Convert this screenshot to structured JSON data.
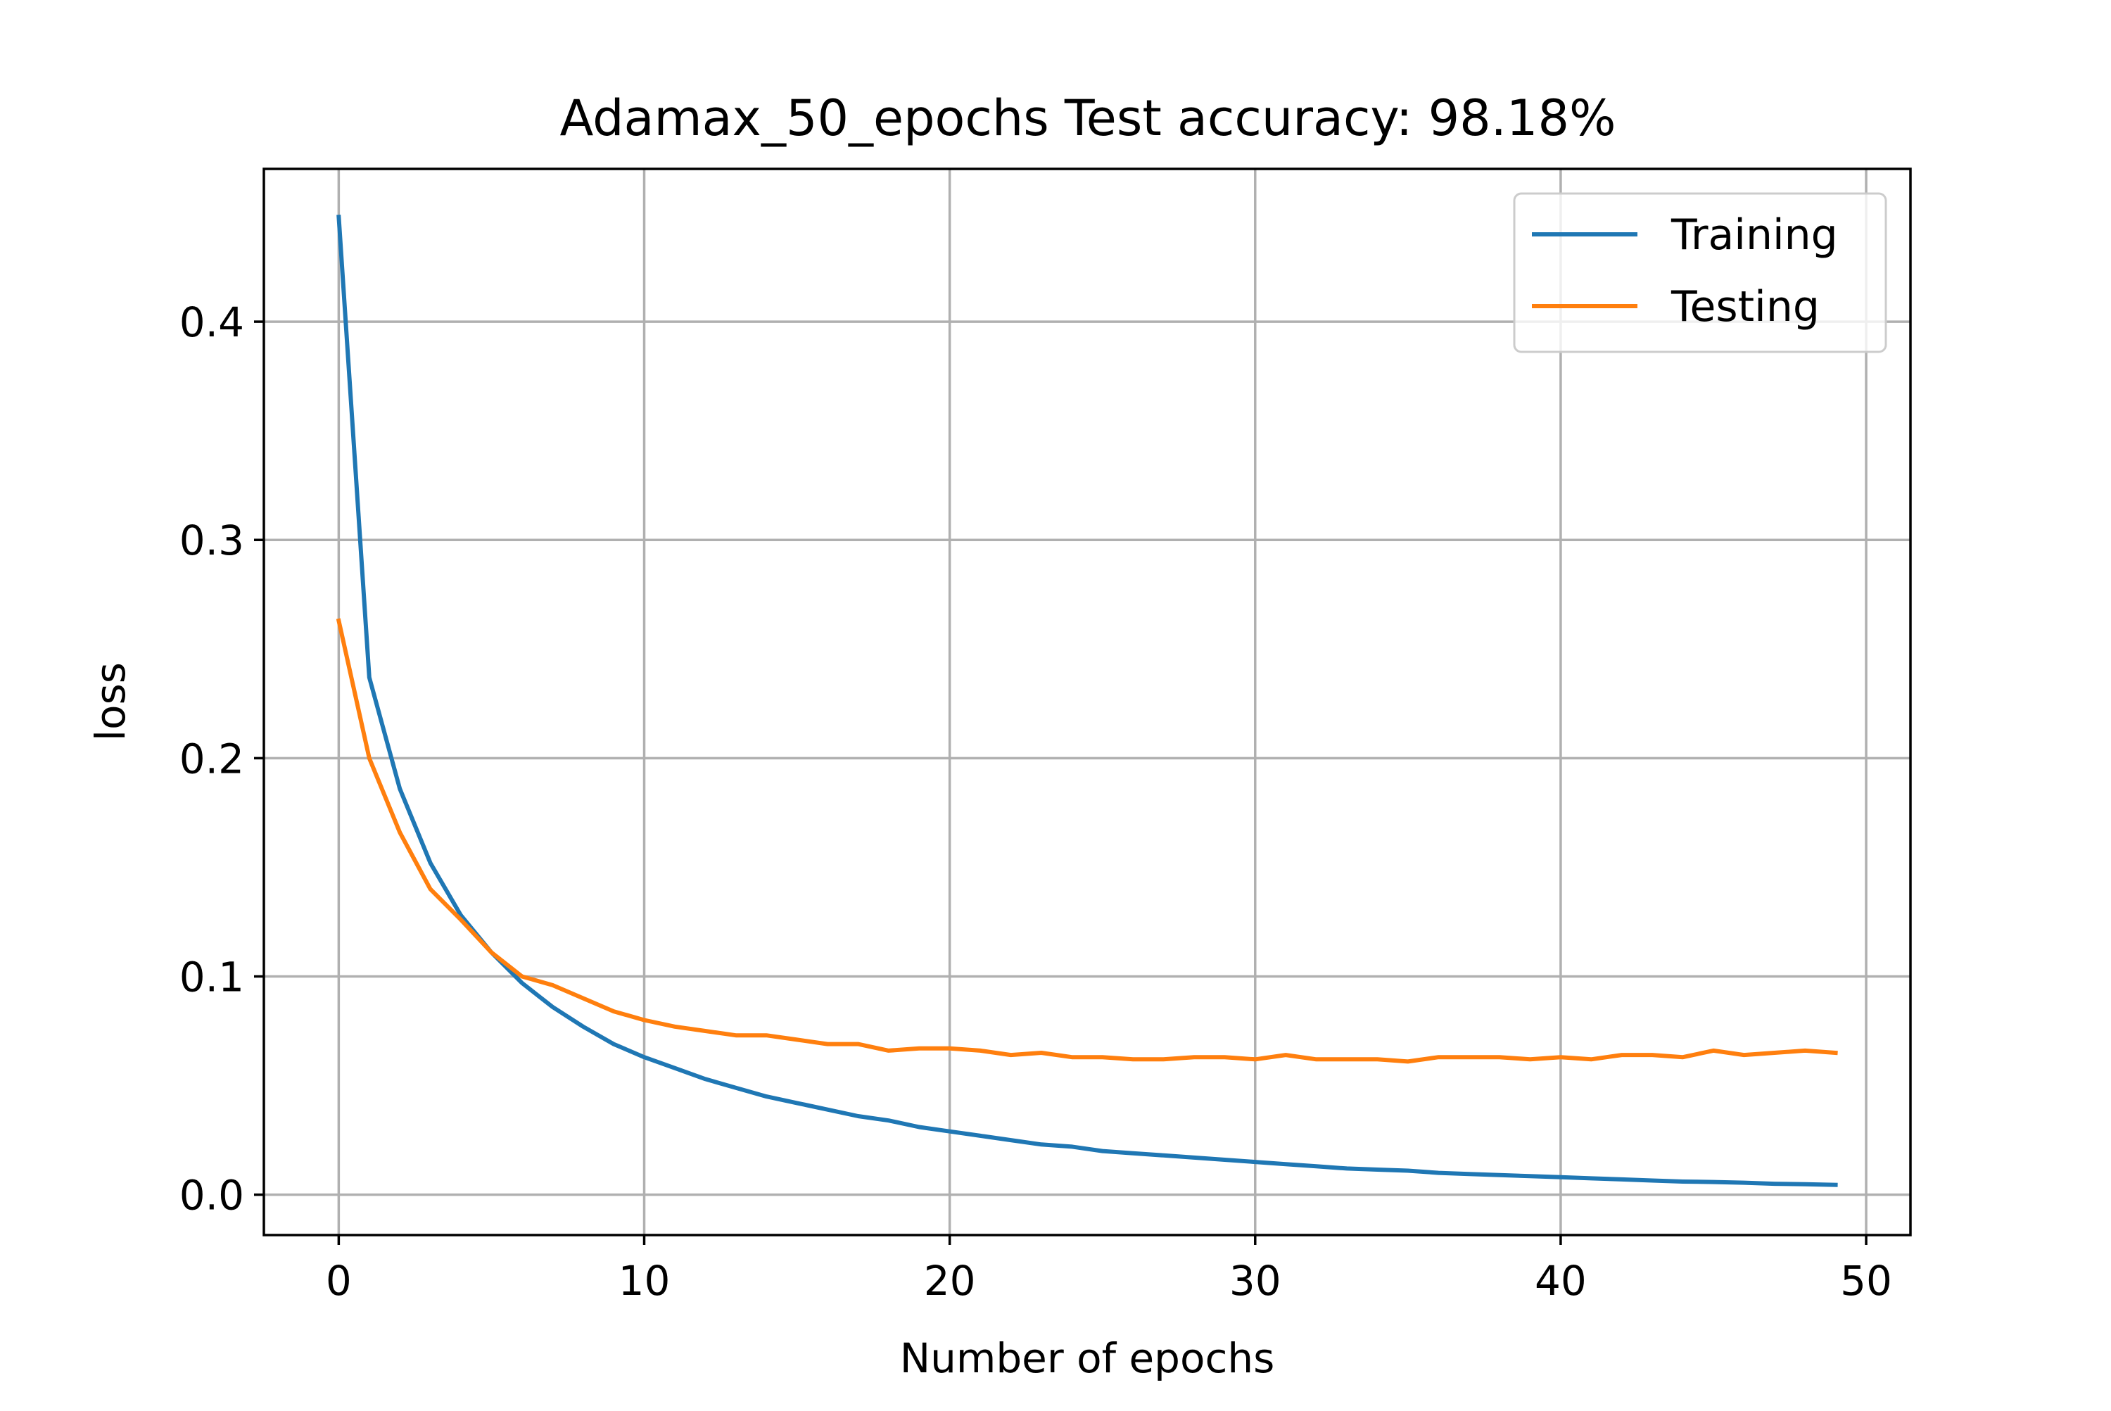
{
  "chart_data": {
    "type": "line",
    "title": "Adamax_50_epochs Test accuracy: 98.18%",
    "xlabel": "Number of epochs",
    "ylabel": "loss",
    "xlim": [
      -2.45,
      51.45
    ],
    "ylim": [
      -0.0185,
      0.47
    ],
    "xticks": [
      0,
      10,
      20,
      30,
      40,
      50
    ],
    "xtick_labels": [
      "0",
      "10",
      "20",
      "30",
      "40",
      "50"
    ],
    "yticks": [
      0.0,
      0.1,
      0.2,
      0.3,
      0.4
    ],
    "ytick_labels": [
      "0.0",
      "0.1",
      "0.2",
      "0.3",
      "0.4"
    ],
    "grid": true,
    "legend_position": "top-right",
    "x": [
      0,
      1,
      2,
      3,
      4,
      5,
      6,
      7,
      8,
      9,
      10,
      11,
      12,
      13,
      14,
      15,
      16,
      17,
      18,
      19,
      20,
      21,
      22,
      23,
      24,
      25,
      26,
      27,
      28,
      29,
      30,
      31,
      32,
      33,
      34,
      35,
      36,
      37,
      38,
      39,
      40,
      41,
      42,
      43,
      44,
      45,
      46,
      47,
      48,
      49
    ],
    "series": [
      {
        "name": "Training",
        "color": "#1f77b4",
        "values": [
          0.448,
          0.237,
          0.186,
          0.152,
          0.128,
          0.111,
          0.097,
          0.086,
          0.077,
          0.069,
          0.063,
          0.058,
          0.053,
          0.049,
          0.045,
          0.042,
          0.039,
          0.036,
          0.034,
          0.031,
          0.029,
          0.027,
          0.025,
          0.023,
          0.022,
          0.02,
          0.019,
          0.018,
          0.017,
          0.016,
          0.015,
          0.014,
          0.013,
          0.012,
          0.0115,
          0.011,
          0.01,
          0.0095,
          0.009,
          0.0085,
          0.008,
          0.0075,
          0.007,
          0.0065,
          0.006,
          0.0058,
          0.0055,
          0.005,
          0.0048,
          0.0045
        ]
      },
      {
        "name": "Testing",
        "color": "#ff7f0e",
        "values": [
          0.263,
          0.2,
          0.166,
          0.14,
          0.126,
          0.111,
          0.1,
          0.096,
          0.09,
          0.084,
          0.08,
          0.077,
          0.075,
          0.073,
          0.073,
          0.071,
          0.069,
          0.069,
          0.066,
          0.067,
          0.067,
          0.066,
          0.064,
          0.065,
          0.063,
          0.063,
          0.062,
          0.062,
          0.063,
          0.063,
          0.062,
          0.064,
          0.062,
          0.062,
          0.062,
          0.061,
          0.063,
          0.063,
          0.063,
          0.062,
          0.063,
          0.062,
          0.064,
          0.064,
          0.063,
          0.066,
          0.064,
          0.065,
          0.066,
          0.065
        ]
      }
    ]
  }
}
